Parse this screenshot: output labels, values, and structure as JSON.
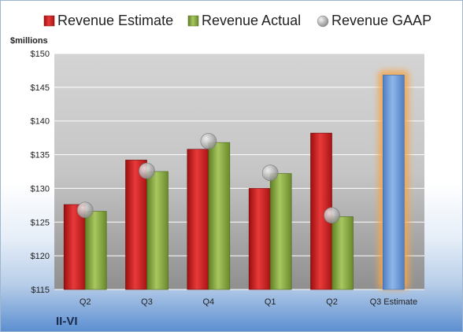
{
  "company": "II-VI",
  "chart_data": {
    "type": "bar",
    "unit_label": "$millions",
    "categories": [
      "Q2",
      "Q3",
      "Q4",
      "Q1",
      "Q2",
      "Q3 Estimate"
    ],
    "series": [
      {
        "name": "Revenue Estimate",
        "color": "#d42424",
        "values": [
          127.6,
          134.2,
          135.8,
          130.0,
          138.2,
          null
        ]
      },
      {
        "name": "Revenue Actual",
        "color": "#8cb044",
        "values": [
          126.6,
          132.5,
          136.8,
          132.2,
          125.8,
          null
        ]
      },
      {
        "name": "Revenue GAAP",
        "color": "#b8b8b8",
        "marker": "circle",
        "values": [
          126.8,
          132.6,
          137.0,
          132.3,
          126.0,
          null
        ]
      }
    ],
    "forecast": {
      "category_index": 5,
      "value": 146.8,
      "color": "#6f9bd6",
      "glow": "#f3a64a"
    },
    "ylim": [
      115,
      150
    ],
    "yticks": [
      115,
      120,
      125,
      130,
      135,
      140,
      145,
      150
    ],
    "ytick_labels": [
      "$115",
      "$120",
      "$125",
      "$130",
      "$135",
      "$140",
      "$145",
      "$150"
    ],
    "grid": true,
    "legend_position": "top"
  }
}
